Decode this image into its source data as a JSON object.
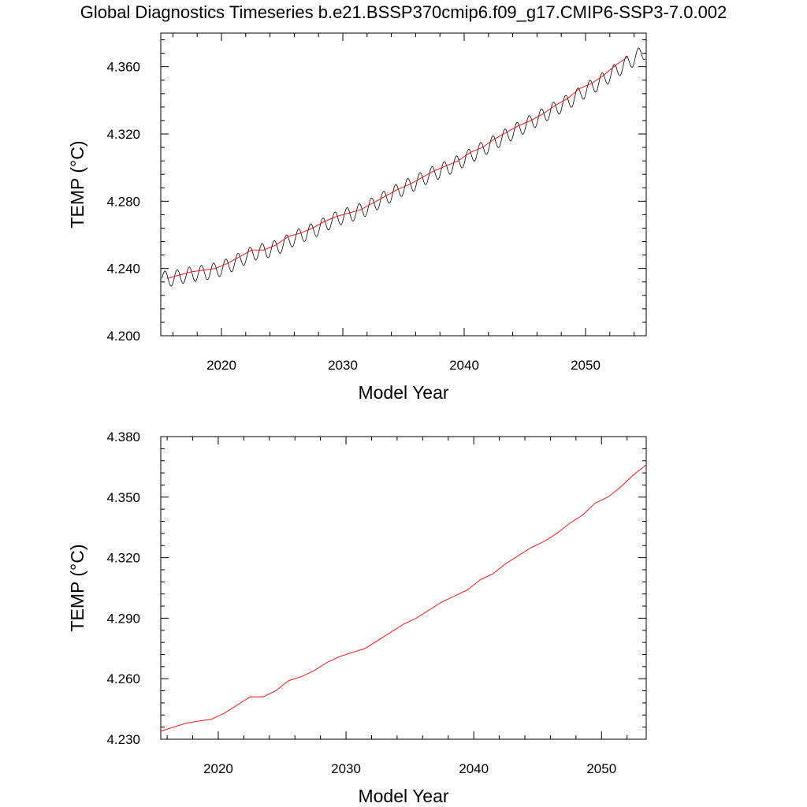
{
  "figure": {
    "title": "Global Diagnostics Timeseries b.e21.BSSP370cmip6.f09_g17.CMIP6-SSP3-7.0.002"
  },
  "chart_data": [
    {
      "type": "line",
      "xlabel": "Model Year",
      "ylabel": "TEMP (°C)",
      "xlim": [
        2015,
        2055
      ],
      "ylim": [
        4.2,
        4.38
      ],
      "xticks": [
        "2020",
        "2030",
        "2040",
        "2050"
      ],
      "yticks": [
        "4.200",
        "4.240",
        "4.280",
        "4.320",
        "4.360"
      ],
      "series": [
        {
          "name": "",
          "kind": "monthly",
          "color": "#000000",
          "seasonal_amplitude": 0.0045,
          "x": [
            2015.1,
            2016,
            2017,
            2018,
            2019,
            2020,
            2021,
            2022,
            2023,
            2024,
            2025,
            2026,
            2027,
            2028,
            2029,
            2030,
            2031,
            2032,
            2033,
            2034,
            2035,
            2036,
            2037,
            2038,
            2039,
            2040,
            2041,
            2042,
            2043,
            2044,
            2045,
            2046,
            2047,
            2048,
            2049,
            2050,
            2051,
            2052,
            2053,
            2054,
            2054.9
          ],
          "y": [
            4.234,
            4.234,
            4.236,
            4.237,
            4.238,
            4.24,
            4.243,
            4.247,
            4.25,
            4.251,
            4.254,
            4.258,
            4.261,
            4.264,
            4.268,
            4.271,
            4.273,
            4.276,
            4.28,
            4.284,
            4.288,
            4.291,
            4.295,
            4.298,
            4.301,
            4.305,
            4.309,
            4.313,
            4.317,
            4.321,
            4.325,
            4.329,
            4.333,
            4.337,
            4.341,
            4.346,
            4.35,
            4.355,
            4.36,
            4.365,
            4.369
          ]
        },
        {
          "name": "",
          "kind": "annual-mean",
          "color": "#ff0000",
          "x": [
            2015.5,
            2016.5,
            2017.5,
            2018.5,
            2019.5,
            2020.5,
            2021.5,
            2022.5,
            2023.5,
            2024.5,
            2025.5,
            2026.5,
            2027.5,
            2028.5,
            2029.5,
            2030.5,
            2031.5,
            2032.5,
            2033.5,
            2034.5,
            2035.5,
            2036.5,
            2037.5,
            2038.5,
            2039.5,
            2040.5,
            2041.5,
            2042.5,
            2043.5,
            2044.5,
            2045.5,
            2046.5,
            2047.5,
            2048.5,
            2049.5,
            2050.5,
            2051.5,
            2052.5,
            2053.5
          ],
          "y": [
            4.234,
            4.236,
            4.238,
            4.239,
            4.24,
            4.243,
            4.247,
            4.251,
            4.251,
            4.254,
            4.259,
            4.261,
            4.264,
            4.268,
            4.271,
            4.273,
            4.275,
            4.279,
            4.283,
            4.287,
            4.29,
            4.294,
            4.298,
            4.301,
            4.304,
            4.309,
            4.312,
            4.317,
            4.321,
            4.325,
            4.328,
            4.332,
            4.337,
            4.341,
            4.347,
            4.35,
            4.355,
            4.361,
            4.366
          ]
        }
      ]
    },
    {
      "type": "line",
      "xlabel": "Model Year",
      "ylabel": "TEMP (°C)",
      "xlim": [
        2015.5,
        2053.5
      ],
      "ylim": [
        4.23,
        4.38
      ],
      "xticks": [
        "2020",
        "2030",
        "2040",
        "2050"
      ],
      "yticks": [
        "4.230",
        "4.260",
        "4.290",
        "4.320",
        "4.350",
        "4.380"
      ],
      "series": [
        {
          "name": "",
          "kind": "annual-mean",
          "color": "#ff0000",
          "x": [
            2015.5,
            2016.5,
            2017.5,
            2018.5,
            2019.5,
            2020.5,
            2021.5,
            2022.5,
            2023.5,
            2024.5,
            2025.5,
            2026.5,
            2027.5,
            2028.5,
            2029.5,
            2030.5,
            2031.5,
            2032.5,
            2033.5,
            2034.5,
            2035.5,
            2036.5,
            2037.5,
            2038.5,
            2039.5,
            2040.5,
            2041.5,
            2042.5,
            2043.5,
            2044.5,
            2045.5,
            2046.5,
            2047.5,
            2048.5,
            2049.5,
            2050.5,
            2051.5,
            2052.5,
            2053.5
          ],
          "y": [
            4.234,
            4.236,
            4.238,
            4.239,
            4.24,
            4.243,
            4.247,
            4.251,
            4.251,
            4.254,
            4.259,
            4.261,
            4.264,
            4.268,
            4.271,
            4.273,
            4.275,
            4.279,
            4.283,
            4.287,
            4.29,
            4.294,
            4.298,
            4.301,
            4.304,
            4.309,
            4.312,
            4.317,
            4.321,
            4.325,
            4.328,
            4.332,
            4.337,
            4.341,
            4.347,
            4.35,
            4.355,
            4.361,
            4.366
          ]
        }
      ]
    }
  ]
}
